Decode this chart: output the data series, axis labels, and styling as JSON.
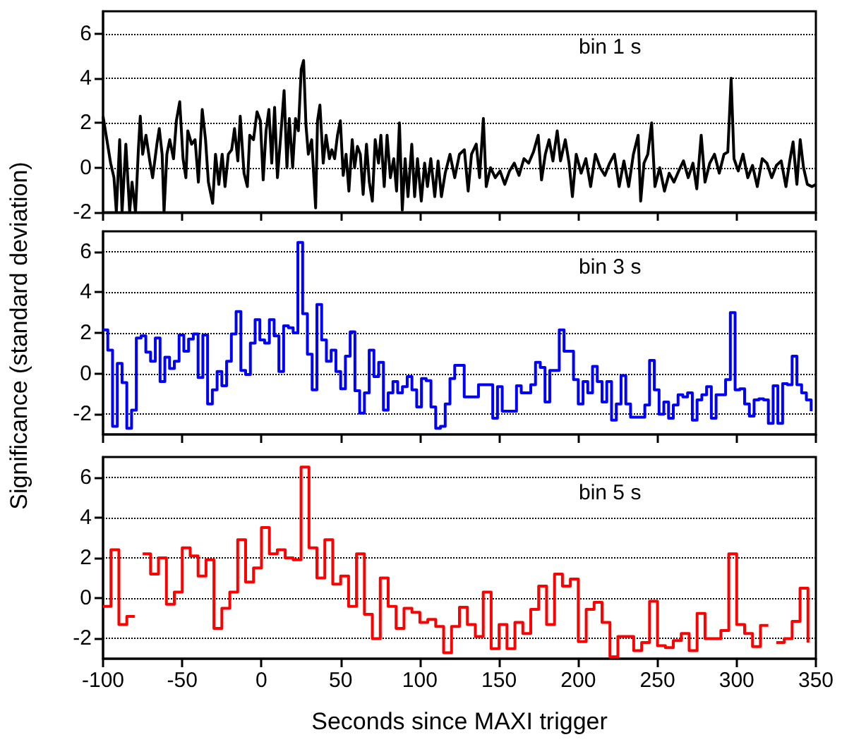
{
  "chart_data": [
    {
      "type": "line",
      "annotations": [
        "bin 1 s"
      ],
      "xlim": [
        -100,
        350
      ],
      "xticks": [
        -100,
        -50,
        0,
        50,
        100,
        150,
        200,
        250,
        300,
        350
      ],
      "ylim": [
        -2,
        7
      ],
      "yticks": [
        -2,
        0,
        2,
        4,
        6
      ],
      "grid": "y",
      "marker": "none",
      "tick_labels": "y",
      "series": [
        {
          "color": "#000000",
          "x": [
            -100,
            -97.6,
            -95.2,
            -93.1,
            -91.6,
            -89.5,
            -88,
            -85.6,
            -83.2,
            -81.7,
            -79.5,
            -77.7,
            -76.5,
            -75,
            -72.9,
            -70.5,
            -68.7,
            -66,
            -64.5,
            -62.7,
            -61.5,
            -59.7,
            -57.9,
            -55.5,
            -53.7,
            -51.6,
            -49.5,
            -47.7,
            -46.5,
            -44.1,
            -41.9,
            -39.8,
            -37.4,
            -35.3,
            -33.5,
            -30.8,
            -29,
            -26.9,
            -24.8,
            -23,
            -20.9,
            -18.8,
            -17,
            -14.9,
            -13.4,
            -11,
            -8.9,
            -7.4,
            -5,
            -2.8,
            -0.7,
            1.1,
            2.9,
            4.7,
            6.5,
            8.3,
            10.1,
            12.2,
            14.3,
            16.1,
            17.6,
            19.7,
            21.5,
            23.3,
            25.1,
            26.6,
            28.1,
            29.6,
            31.7,
            34.2,
            35.4,
            36.9,
            39,
            40.8,
            42.9,
            44.4,
            46.2,
            48,
            49.8,
            51.6,
            53.4,
            55.2,
            57.3,
            58.8,
            60.6,
            62.4,
            64.2,
            66.3,
            68.1,
            70,
            71.8,
            73.9,
            75.4,
            77.5,
            79.3,
            81.4,
            83.5,
            85.3,
            87.1,
            88.9,
            90.7,
            92.5,
            94.9,
            96.7,
            98.5,
            100.9,
            103,
            104.8,
            106.9,
            109.4,
            111.5,
            113.6,
            116,
            119,
            122,
            125,
            128.1,
            130.5,
            132.6,
            135.6,
            137.7,
            140.1,
            141.9,
            144.6,
            147.6,
            150.6,
            153.6,
            156.6,
            159.6,
            162.6,
            165.7,
            168.7,
            171.7,
            174.7,
            176.8,
            179.2,
            181.6,
            184,
            186.7,
            188.8,
            191.8,
            194.2,
            196.3,
            198.7,
            201.8,
            204.8,
            207.8,
            210.8,
            213.8,
            216.8,
            219.8,
            222.8,
            225.8,
            228.8,
            231.8,
            234.8,
            237.8,
            239.4,
            241.5,
            243.9,
            246.3,
            248.4,
            251.4,
            254.4,
            257.4,
            260.4,
            263.4,
            266.4,
            269.4,
            272.4,
            274.8,
            277.6,
            280,
            283,
            286,
            289,
            292,
            294.4,
            296.5,
            298.3,
            301,
            304,
            307,
            310,
            313,
            316.1,
            319.1,
            322.1,
            325.1,
            328.1,
            331.1,
            333.5,
            335.6,
            338,
            340.1,
            342.2,
            344.6,
            347.6,
            350
          ],
          "values": [
            2.3,
            1.25,
            0.2,
            -0.45,
            -2,
            1.25,
            -2,
            1.05,
            -2,
            -0.65,
            -2,
            0.8,
            2.3,
            0.6,
            1.45,
            0.3,
            -0.45,
            1.05,
            1.75,
            0.6,
            -2,
            0.6,
            1.25,
            0.4,
            2.1,
            2.95,
            0.4,
            -0.45,
            1.65,
            1.05,
            1.25,
            -0.65,
            2.6,
            1.25,
            -0.65,
            -1.6,
            0.6,
            -0.75,
            0.6,
            -0.85,
            0.6,
            0.8,
            1.75,
            0.3,
            2.3,
            -0.25,
            -0.85,
            1.45,
            1.25,
            2.5,
            2.1,
            -0.55,
            1.65,
            2.6,
            0.2,
            2.7,
            -0.45,
            1.45,
            3.45,
            0,
            2.2,
            0,
            2.2,
            1.65,
            4.4,
            4.8,
            1.9,
            0.6,
            1.25,
            -1.8,
            2.1,
            2.8,
            0.2,
            1.45,
            0.4,
            0.8,
            0.4,
            1.45,
            2.1,
            -0.35,
            0.6,
            -1.05,
            1.25,
            0,
            0.95,
            0.6,
            -1.2,
            1.05,
            -0.65,
            -1.5,
            1.25,
            0.2,
            1.45,
            -0.85,
            1.45,
            -0.45,
            0.4,
            -1.05,
            2,
            -1.9,
            0.4,
            -1.3,
            1.05,
            -1.3,
            0.4,
            -1.5,
            0.2,
            -0.85,
            0.4,
            -1.3,
            0.3,
            -1.3,
            -0.25,
            0.6,
            -0.45,
            0.6,
            0.8,
            -1.05,
            0.6,
            1.05,
            -0.45,
            2.2,
            -0.85,
            0,
            -0.45,
            -0.15,
            -0.75,
            -0.15,
            0.2,
            -0.35,
            0.4,
            0.2,
            0.7,
            1.45,
            -0.55,
            0.6,
            1.25,
            0.3,
            1.65,
            0.3,
            1.25,
            0.2,
            -1.3,
            0.6,
            -0.25,
            0.4,
            -0.85,
            0.6,
            0,
            -0.35,
            0.2,
            0.6,
            -0.85,
            0.3,
            -0.85,
            0.6,
            1.45,
            -1.5,
            0.2,
            0.6,
            2,
            -0.85,
            0,
            -1.05,
            -0.25,
            -0.65,
            -0.15,
            0.3,
            -0.45,
            0.2,
            -0.95,
            1.45,
            -0.65,
            0.2,
            0.6,
            -0.25,
            0.6,
            0.7,
            4,
            0.4,
            -0.15,
            0.6,
            -0.45,
            0.1,
            -0.85,
            0.4,
            0.2,
            -0.45,
            0.1,
            0.3,
            -0.85,
            0.3,
            1.15,
            -0.75,
            1.25,
            0,
            -0.75,
            -0.85,
            -0.75
          ]
        }
      ]
    },
    {
      "type": "step",
      "annotations": [
        "bin 3 s"
      ],
      "ylabel": "Significance (standard deviation)",
      "xlim": [
        -100,
        350
      ],
      "xticks": [
        -100,
        -50,
        0,
        50,
        100,
        150,
        200,
        250,
        300,
        350
      ],
      "ylim": [
        -3,
        7
      ],
      "yticks": [
        -2,
        0,
        2,
        4,
        6
      ],
      "grid": "y",
      "marker": "none",
      "tick_labels": "y",
      "x": [
        -100,
        -97,
        -94,
        -91,
        -88,
        -85,
        -82,
        -79,
        -76,
        -73,
        -70,
        -67,
        -64,
        -61,
        -58,
        -55,
        -52,
        -49,
        -46,
        -43,
        -40,
        -37,
        -34,
        -31,
        -28,
        -25,
        -22,
        -19,
        -16,
        -13,
        -10,
        -7,
        -4,
        -1,
        2,
        5,
        8,
        11,
        14,
        17,
        20,
        23,
        26,
        29,
        32,
        35,
        38,
        41,
        44,
        47,
        50,
        53,
        56,
        59,
        62,
        65,
        68,
        71,
        74,
        77,
        80,
        83,
        86,
        89,
        92,
        95,
        98,
        101,
        104,
        107,
        110,
        113,
        116,
        119,
        122,
        125,
        128,
        131,
        134,
        137,
        140,
        143,
        146,
        149,
        152,
        155,
        158,
        161,
        164,
        167,
        170,
        173,
        176,
        179,
        182,
        185,
        188,
        191,
        194,
        197,
        200,
        203,
        206,
        209,
        212,
        215,
        218,
        221,
        224,
        227,
        230,
        233,
        236,
        239,
        242,
        245,
        248,
        251,
        254,
        257,
        260,
        263,
        266,
        269,
        272,
        275,
        278,
        281,
        284,
        287,
        290,
        293,
        296,
        299,
        302,
        305,
        308,
        311,
        314,
        317,
        320,
        323,
        326,
        329,
        332,
        335,
        338,
        341,
        344,
        347
      ],
      "series": [
        {
          "color": "#0000ff",
          "values": [
            2.15,
            1.15,
            -2.6,
            0.5,
            -0.45,
            -2.7,
            -1.8,
            1.75,
            1.85,
            1.05,
            0.6,
            1.75,
            -0.4,
            0.8,
            0.25,
            0.6,
            1.9,
            1.1,
            1.7,
            1.95,
            -0.2,
            1.9,
            -1.5,
            -0.8,
            0.1,
            -0.6,
            0.6,
            1.95,
            3.05,
            0.15,
            -0.05,
            1.5,
            2.65,
            1.65,
            1.5,
            2.65,
            1.85,
            0.1,
            2.35,
            2.25,
            2,
            6.45,
            2.95,
            0.95,
            -0.8,
            3.4,
            1.65,
            0.6,
            1.15,
            0.1,
            -0.75,
            0.85,
            2.05,
            -0.85,
            -1.95,
            -0.95,
            1.15,
            -0.15,
            0.55,
            -1.8,
            -0.95,
            -0.4,
            -0.95,
            -0.65,
            -0.15,
            -0.8,
            -1.65,
            -0.25,
            -0.35,
            -1.65,
            -2.7,
            -2.6,
            -1.5,
            -0.25,
            0.4,
            0.4,
            -1.15,
            -1.15,
            -1.15,
            -0.55,
            -0.55,
            -0.55,
            -2.2,
            -0.65,
            -1.85,
            -1.85,
            -1.85,
            -0.6,
            -0.95,
            -0.95,
            -0.55,
            0.55,
            0.3,
            -1.4,
            0.15,
            0.15,
            2.15,
            1.1,
            1.1,
            -0.3,
            -1.5,
            -0.4,
            -0.95,
            0.35,
            -0.4,
            -1.4,
            -0.4,
            -2.3,
            -1.5,
            -0.1,
            -1.5,
            -2.15,
            -2.15,
            -2.15,
            -1.55,
            0.65,
            -0.8,
            -2,
            -1.4,
            -2.2,
            -1.55,
            -1.05,
            -1.15,
            -0.95,
            -2.3,
            -1.3,
            -1.05,
            -0.65,
            -2.2,
            -1.05,
            -1.05,
            -0.3,
            3,
            -0.8,
            -0.75,
            -1.5,
            -2.1,
            -1.3,
            -1.25,
            -1.3,
            -2.45,
            -0.6,
            -2.45,
            -0.5,
            -0.55,
            0.85,
            -0.55,
            -0.95,
            -1.3,
            -1.85
          ]
        }
      ]
    },
    {
      "type": "step",
      "annotations": [
        "bin 5 s"
      ],
      "xlabel": "Seconds since MAXI trigger",
      "xlim": [
        -100,
        350
      ],
      "xticks": [
        -100,
        -50,
        0,
        50,
        100,
        150,
        200,
        250,
        300,
        350
      ],
      "ylim": [
        -3,
        7
      ],
      "yticks": [
        -2,
        0,
        2,
        4,
        6
      ],
      "grid": "y",
      "marker": "none",
      "x": [
        -100,
        -95,
        -90,
        -85,
        -80,
        -75,
        -70,
        -65,
        -60,
        -55,
        -50,
        -45,
        -40,
        -35,
        -30,
        -25,
        -20,
        -15,
        -10,
        -5,
        0,
        5,
        10,
        15,
        20,
        25,
        30,
        35,
        40,
        45,
        50,
        55,
        60,
        65,
        70,
        75,
        80,
        85,
        90,
        95,
        100,
        105,
        110,
        115,
        120,
        125,
        130,
        135,
        140,
        145,
        150,
        155,
        160,
        165,
        170,
        175,
        180,
        185,
        190,
        195,
        200,
        205,
        210,
        215,
        220,
        225,
        230,
        235,
        240,
        245,
        250,
        255,
        260,
        265,
        270,
        275,
        280,
        285,
        290,
        295,
        300,
        305,
        310,
        315,
        320,
        325,
        330,
        335,
        340,
        345
      ],
      "series": [
        {
          "color": "#ff0000",
          "values": [
            -0.4,
            2.4,
            -1.3,
            -0.9,
            null,
            2.2,
            1.2,
            2,
            -0.3,
            0.3,
            2.5,
            2.1,
            1.1,
            1.9,
            -1.5,
            -0.5,
            0.3,
            2.9,
            0.8,
            1.5,
            3.5,
            2.2,
            2.4,
            2,
            1.9,
            6.5,
            2.5,
            1,
            2.9,
            0.7,
            1.1,
            -0.4,
            2.2,
            -0.8,
            -2,
            1,
            -0.4,
            -1.5,
            -0.5,
            -0.7,
            -1.2,
            -1.05,
            -1.4,
            -2.7,
            -1.4,
            -0.45,
            -1.3,
            -1.9,
            0.3,
            -2.5,
            -1.3,
            -2.5,
            -1.2,
            -1.75,
            -0.55,
            0.6,
            -1.3,
            1.2,
            0.6,
            0.95,
            -2.15,
            -0.55,
            -0.2,
            -1.2,
            -2.9,
            -1.9,
            -1.9,
            -2.6,
            -2.2,
            -0.15,
            -2.35,
            -2.45,
            -2.1,
            -1.75,
            -2.6,
            -0.75,
            -2,
            -2,
            -1.6,
            2.2,
            -1.3,
            -1.75,
            -2.4,
            -1.35,
            null,
            -2.2,
            -2,
            -1.15,
            0.5,
            -2.2
          ]
        }
      ]
    }
  ]
}
